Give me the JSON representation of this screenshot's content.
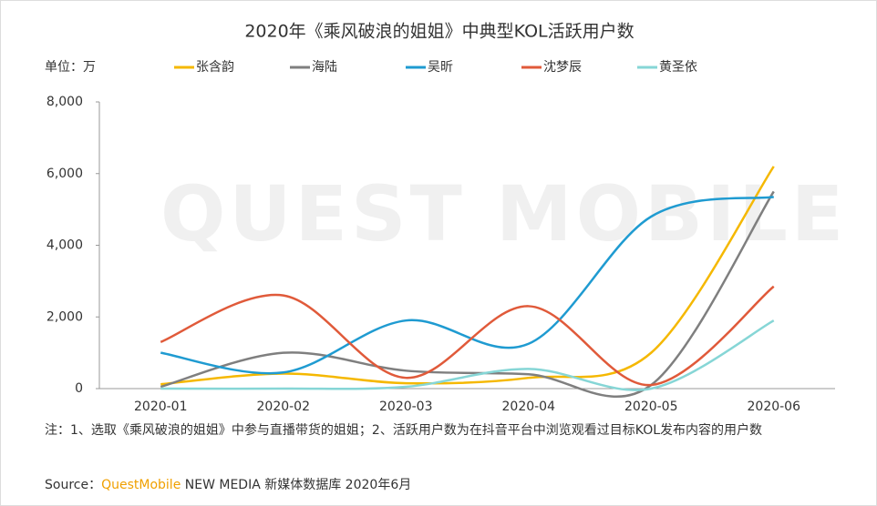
{
  "chart_data": {
    "type": "line",
    "title": "2020年《乘风破浪的姐姐》中典型KOL活跃用户数",
    "unit_label": "单位：万",
    "watermark": "QUEST MOBILE",
    "categories": [
      "2020-01",
      "2020-02",
      "2020-03",
      "2020-04",
      "2020-05",
      "2020-06"
    ],
    "series": [
      {
        "name": "张含韵",
        "color": "#f5b800",
        "values": [
          120,
          420,
          150,
          300,
          1000,
          6200
        ]
      },
      {
        "name": "海陆",
        "color": "#7f7f7f",
        "values": [
          50,
          1000,
          500,
          400,
          100,
          5500
        ]
      },
      {
        "name": "吴昕",
        "color": "#1f9bd1",
        "values": [
          1000,
          450,
          1900,
          1250,
          4800,
          5350
        ]
      },
      {
        "name": "沈梦辰",
        "color": "#e05a3a",
        "values": [
          1300,
          2600,
          300,
          2300,
          100,
          2850
        ]
      },
      {
        "name": "黄圣依",
        "color": "#86d6d6",
        "values": [
          0,
          0,
          50,
          550,
          0,
          1900
        ]
      }
    ],
    "ylim": [
      0,
      8000
    ],
    "yticks": [
      0,
      {
        "value": 2000,
        "label": "2,000"
      },
      {
        "value": 4000,
        "label": "4,000"
      },
      {
        "value": 6000,
        "label": "6,000"
      },
      {
        "value": 8000,
        "label": "8,000"
      }
    ],
    "smooth": true,
    "grid": false
  },
  "note": "注：1、选取《乘风破浪的姐姐》中参与直播带货的姐姐；2、活跃用户数为在抖音平台中浏览观看过目标KOL发布内容的用户数",
  "source": {
    "prefix": "Source：",
    "brand": "QuestMobile",
    "rest": " NEW MEDIA 新媒体数据库 2020年6月"
  }
}
